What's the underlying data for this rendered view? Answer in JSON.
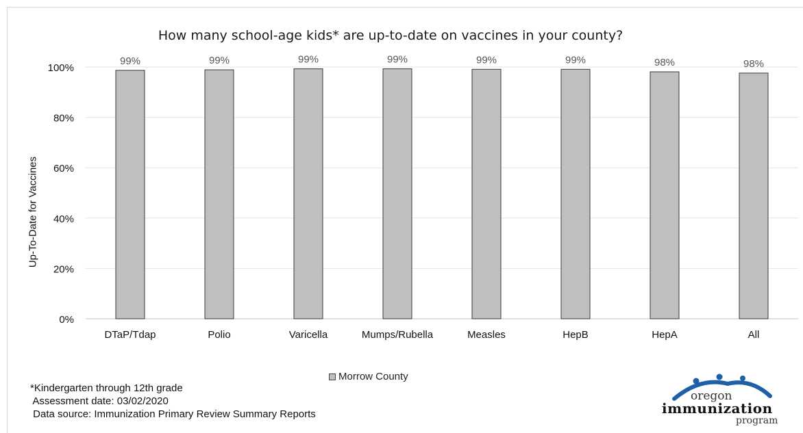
{
  "chart_data": {
    "type": "bar",
    "title": "How many school-age kids* are up-to-date on vaccines in your county?",
    "ylabel": "Up-To-Date for Vaccines",
    "xlabel": "",
    "categories": [
      "DTaP/Tdap",
      "Polio",
      "Varicella",
      "Mumps/Rubella",
      "Measles",
      "HepB",
      "HepA",
      "All"
    ],
    "series": [
      {
        "name": "Morrow County",
        "values": [
          98.7,
          98.9,
          99.3,
          99.3,
          99.1,
          99.1,
          98.1,
          97.6
        ]
      }
    ],
    "data_labels": [
      "99%",
      "99%",
      "99%",
      "99%",
      "99%",
      "99%",
      "98%",
      "98%"
    ],
    "yticks": [
      "0%",
      "20%",
      "40%",
      "60%",
      "80%",
      "100%"
    ],
    "ylim": [
      0,
      100
    ],
    "grid": true,
    "legend_position": "bottom",
    "bar_color": "#bfbfbf"
  },
  "footnotes": {
    "line1": "*Kindergarten through 12th grade",
    "line2": " Assessment date: 03/02/2020",
    "line3": " Data source: Immunization Primary Review Summary Reports"
  },
  "logo": {
    "word1": "oregon",
    "word2": "immunization",
    "word3": "program"
  }
}
